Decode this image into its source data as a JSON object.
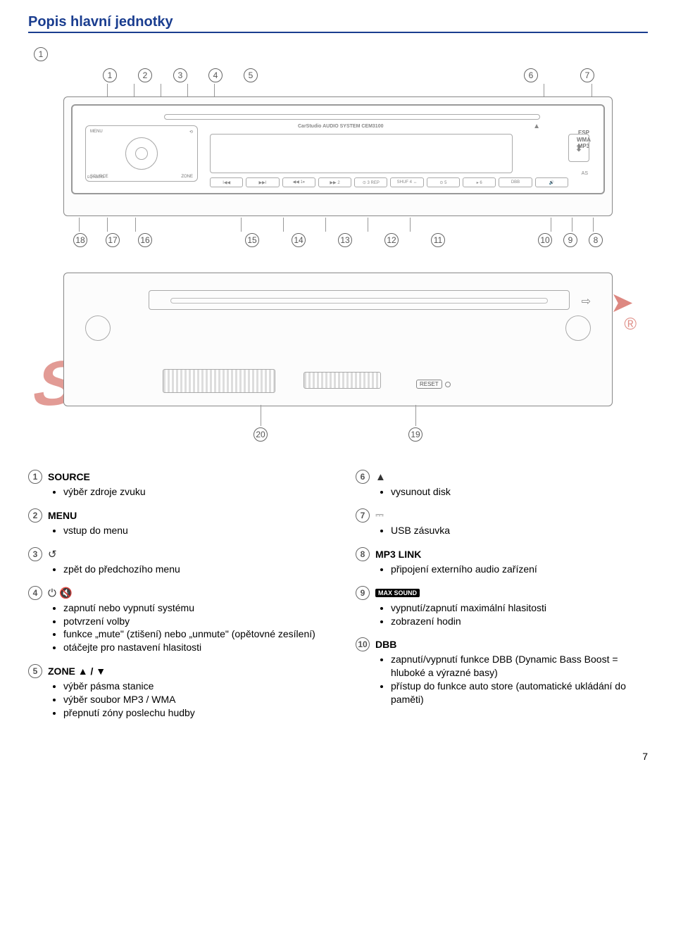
{
  "title": "Popis hlavní jednotky",
  "page_number": "7",
  "colors": {
    "accent": "#1a3d8f",
    "watermark": "#c73a2e",
    "line": "#888888",
    "text": "#000000"
  },
  "front_diagram": {
    "top_callouts_left": [
      "1",
      "2",
      "3",
      "4",
      "5"
    ],
    "top_callouts_right": [
      "6",
      "7"
    ],
    "bottom_callouts": [
      "18",
      "17",
      "16",
      "15",
      "14",
      "13",
      "12",
      "11",
      "10",
      "9",
      "8"
    ],
    "lcd_brand": "CarStudio AUDIO SYSTEM CEM3100",
    "right_badges": [
      "ESP",
      "WMA",
      "MP3"
    ],
    "eject_symbol": "▲",
    "as_label": "AS",
    "usb_symbol": "⎙",
    "ctrl_labels": {
      "tl": "MENU",
      "tr": "⟲",
      "bl": "SOURCE",
      "br": "ZONE",
      "ll": "EQ\nAUDIO",
      "lr": "BAND"
    },
    "presets": [
      "I◀◀",
      "▶▶I",
      "◀◀ 1⏸",
      "▶▶ 2",
      "⊙ 3 REP",
      "SHUF 4 ↔",
      "⊙ 5",
      "▸ 6",
      "DBB",
      "🔊"
    ]
  },
  "rear_diagram": {
    "reset_label": "RESET",
    "bottom_callouts": [
      "20",
      "19"
    ]
  },
  "entries_left": [
    {
      "num": "1",
      "label_type": "text",
      "label": "SOURCE",
      "items": [
        "výběr zdroje zvuku"
      ]
    },
    {
      "num": "2",
      "label_type": "text",
      "label": "MENU",
      "items": [
        "vstup do menu"
      ]
    },
    {
      "num": "3",
      "label_type": "sym",
      "label": "↺",
      "items": [
        "zpět do předchozího menu"
      ]
    },
    {
      "num": "4",
      "label_type": "sym",
      "label": "⏻ 🔇",
      "items": [
        "zapnutí nebo vypnutí systému",
        "potvrzení volby",
        "funkce „mute\" (ztišení) nebo „unmute\" (opětovné zesílení)",
        "otáčejte pro nastavení hlasitosti"
      ]
    },
    {
      "num": "5",
      "label_type": "text",
      "label": "ZONE ▲ / ▼",
      "items": [
        "výběr pásma stanice",
        "výběr soubor MP3 / WMA",
        "přepnutí zóny poslechu hudby"
      ]
    }
  ],
  "entries_right": [
    {
      "num": "6",
      "label_type": "sym",
      "label": "▲",
      "items": [
        "vysunout disk"
      ]
    },
    {
      "num": "7",
      "label_type": "sym",
      "label": "⎓",
      "items": [
        "USB zásuvka"
      ]
    },
    {
      "num": "8",
      "label_type": "text",
      "label": "MP3 LINK",
      "items": [
        "připojení externího audio zařízení"
      ]
    },
    {
      "num": "9",
      "label_type": "badge",
      "label": "MAX SOUND",
      "items": [
        "vypnutí/zapnutí maximální hlasitosti",
        "zobrazení hodin"
      ]
    },
    {
      "num": "10",
      "label_type": "text",
      "label": "DBB",
      "items": [
        "zapnutí/vypnutí funkce DBB (Dynamic Bass Boost = hluboké a výrazné basy)",
        "přístup do funkce auto store (automatické ukládání do paměti)"
      ]
    }
  ]
}
